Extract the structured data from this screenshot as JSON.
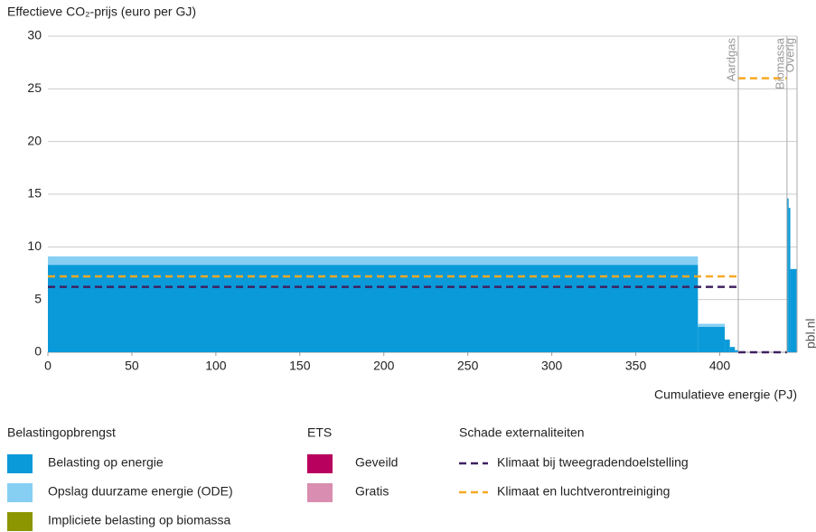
{
  "chart_data": {
    "type": "step-area",
    "title": "Effectieve CO₂-prijs (euro per GJ)",
    "x_label": "Cumulatieve energie (PJ)",
    "source": "pbl.nl",
    "xlim": [
      0,
      446
    ],
    "xticks": [
      0,
      50,
      100,
      150,
      200,
      250,
      300,
      350,
      400
    ],
    "ylim": [
      0,
      30
    ],
    "yticks": [
      0,
      5,
      10,
      15,
      20,
      25,
      30
    ],
    "grid": true,
    "bins": [
      0,
      387,
      403,
      406,
      409,
      411,
      440,
      441,
      442,
      446
    ],
    "sectors": [
      {
        "label": "Aardgas",
        "end": 411
      },
      {
        "label": "Biomassa",
        "end": 440
      },
      {
        "label": "Overig",
        "end": 446
      }
    ],
    "groups": [
      {
        "title": "Belastingopbrengst",
        "series": [
          {
            "name": "Belasting op energie",
            "color": "#0a9ad9",
            "values": [
              8.3,
              2.4,
              1.2,
              0.5,
              0.2,
              0,
              14.6,
              13.7,
              7.9
            ]
          },
          {
            "name": "Opslag duurzame energie (ODE)",
            "color": "#86cff3",
            "values": [
              0.8,
              0.3,
              0,
              0,
              0,
              0,
              0,
              0,
              0
            ]
          },
          {
            "name": "Impliciete belasting op biomassa",
            "color": "#8c9600",
            "values": [
              0,
              0,
              0,
              0,
              0,
              0,
              0,
              0,
              0
            ]
          }
        ]
      },
      {
        "title": "ETS",
        "series": [
          {
            "name": "Geveild",
            "color": "#b8005e",
            "values": [
              0,
              0,
              0,
              0,
              0,
              0,
              0,
              0,
              0
            ]
          },
          {
            "name": "Gratis",
            "color": "#d98db0",
            "values": [
              0,
              0,
              0,
              0,
              0,
              0,
              0,
              0,
              0
            ]
          }
        ]
      },
      {
        "title": "Schade externaliteiten",
        "series": [
          {
            "name": "Klimaat bij tweegradendoelstelling",
            "color": "#3f2160",
            "style": "dashed",
            "bins": [
              0,
              411,
              440
            ],
            "values": [
              6.2,
              0
            ]
          },
          {
            "name": "Klimaat en luchtverontreiniging",
            "color": "#f7a823",
            "style": "dashed",
            "bins": [
              0,
              411,
              440
            ],
            "values": [
              7.2,
              26
            ]
          }
        ]
      }
    ]
  }
}
